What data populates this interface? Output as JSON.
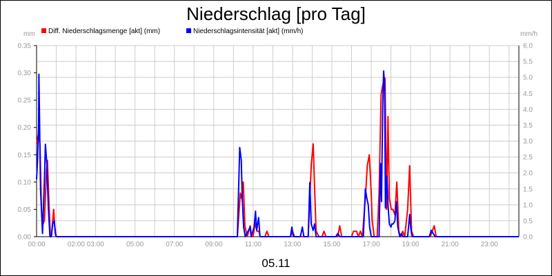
{
  "chart_data": {
    "type": "line",
    "title": "Niederschlag [pro Tag]",
    "date_label": "05.11",
    "y_left_unit": "mm",
    "y_right_unit": "mm/h",
    "ylim_left": [
      0,
      0.35
    ],
    "ylim_right": [
      0,
      6.0
    ],
    "xlim_hours": [
      0,
      24.5
    ],
    "grid": true,
    "legend_placement": "top-left",
    "y_left_ticks": [
      "0.00",
      "0.05",
      "0.10",
      "0.15",
      "0.20",
      "0.25",
      "0.30",
      "0.35"
    ],
    "y_right_ticks": [
      "0.0",
      "0.5",
      "1.0",
      "1.5",
      "2.0",
      "2.5",
      "3.0",
      "3.5",
      "4.0",
      "4.5",
      "5.0",
      "5.5",
      "6.0"
    ],
    "x_tick_labels": [
      {
        "hour": 0,
        "label": "00:00"
      },
      {
        "hour": 2.5,
        "label": "02:00 03:00"
      },
      {
        "hour": 5,
        "label": "05:00"
      },
      {
        "hour": 7,
        "label": "07:00"
      },
      {
        "hour": 9,
        "label": "09:00"
      },
      {
        "hour": 11,
        "label": "11:00"
      },
      {
        "hour": 13,
        "label": "13:00"
      },
      {
        "hour": 15,
        "label": "15:00"
      },
      {
        "hour": 17,
        "label": "17:00"
      },
      {
        "hour": 19,
        "label": "19:00"
      },
      {
        "hour": 21,
        "label": "21:00"
      },
      {
        "hour": 23,
        "label": "23:00"
      }
    ],
    "series": [
      {
        "name": "Diff. Niederschlagsmenge [akt] (mm)",
        "axis": "left",
        "color": "#ff0000",
        "points": [
          [
            0.0,
            0.17
          ],
          [
            0.05,
            0.18
          ],
          [
            0.1,
            0.19
          ],
          [
            0.17,
            0.17
          ],
          [
            0.25,
            0.05
          ],
          [
            0.3,
            0.02
          ],
          [
            0.4,
            0.03
          ],
          [
            0.5,
            0.12
          ],
          [
            0.55,
            0.14
          ],
          [
            0.62,
            0.07
          ],
          [
            0.7,
            0.0
          ],
          [
            0.75,
            0.0
          ],
          [
            0.82,
            0.03
          ],
          [
            0.87,
            0.05
          ],
          [
            0.92,
            0.02
          ],
          [
            1.0,
            0.0
          ],
          [
            10.2,
            0.0
          ],
          [
            10.35,
            0.08
          ],
          [
            10.42,
            0.07
          ],
          [
            10.5,
            0.1
          ],
          [
            10.58,
            0.02
          ],
          [
            10.7,
            0.0
          ],
          [
            10.85,
            0.02
          ],
          [
            10.92,
            0.0
          ],
          [
            11.0,
            0.0
          ],
          [
            11.1,
            0.025
          ],
          [
            11.2,
            0.01
          ],
          [
            11.3,
            0.01
          ],
          [
            11.35,
            0.0
          ],
          [
            11.6,
            0.0
          ],
          [
            11.7,
            0.01
          ],
          [
            11.8,
            0.0
          ],
          [
            12.9,
            0.0
          ],
          [
            13.0,
            0.01
          ],
          [
            13.1,
            0.0
          ],
          [
            13.8,
            0.0
          ],
          [
            13.95,
            0.13
          ],
          [
            14.05,
            0.17
          ],
          [
            14.12,
            0.09
          ],
          [
            14.2,
            0.01
          ],
          [
            14.35,
            0.0
          ],
          [
            14.5,
            0.0
          ],
          [
            14.6,
            0.01
          ],
          [
            14.7,
            0.0
          ],
          [
            15.3,
            0.0
          ],
          [
            15.4,
            0.02
          ],
          [
            15.5,
            0.0
          ],
          [
            16.0,
            0.0
          ],
          [
            16.1,
            0.01
          ],
          [
            16.25,
            0.01
          ],
          [
            16.35,
            0.0
          ],
          [
            16.45,
            0.01
          ],
          [
            16.55,
            0.0
          ],
          [
            16.7,
            0.07
          ],
          [
            16.8,
            0.13
          ],
          [
            16.9,
            0.15
          ],
          [
            17.0,
            0.08
          ],
          [
            17.05,
            0.03
          ],
          [
            17.15,
            0.0
          ],
          [
            17.3,
            0.0
          ],
          [
            17.4,
            0.08
          ],
          [
            17.5,
            0.26
          ],
          [
            17.6,
            0.28
          ],
          [
            17.7,
            0.29
          ],
          [
            17.78,
            0.05
          ],
          [
            17.85,
            0.22
          ],
          [
            17.92,
            0.07
          ],
          [
            18.02,
            0.05
          ],
          [
            18.1,
            0.05
          ],
          [
            18.2,
            0.04
          ],
          [
            18.3,
            0.1
          ],
          [
            18.4,
            0.01
          ],
          [
            18.5,
            0.0
          ],
          [
            18.6,
            0.01
          ],
          [
            18.7,
            0.0
          ],
          [
            18.85,
            0.05
          ],
          [
            18.95,
            0.13
          ],
          [
            19.05,
            0.01
          ],
          [
            19.15,
            0.0
          ],
          [
            20.0,
            0.0
          ],
          [
            20.1,
            0.01
          ],
          [
            20.2,
            0.02
          ],
          [
            20.3,
            0.0
          ],
          [
            24.5,
            0.0
          ]
        ]
      },
      {
        "name": "Niederschlagsintensität [akt] (mm/h)",
        "axis": "right",
        "color": "#0000ff",
        "points": [
          [
            0.0,
            1.8
          ],
          [
            0.05,
            2.4
          ],
          [
            0.1,
            3.5
          ],
          [
            0.12,
            5.1
          ],
          [
            0.2,
            1.5
          ],
          [
            0.3,
            0.1
          ],
          [
            0.4,
            1.8
          ],
          [
            0.45,
            2.9
          ],
          [
            0.52,
            2.3
          ],
          [
            0.6,
            0.9
          ],
          [
            0.68,
            0.0
          ],
          [
            0.75,
            0.0
          ],
          [
            0.82,
            0.4
          ],
          [
            0.9,
            0.5
          ],
          [
            0.95,
            0.1
          ],
          [
            1.0,
            0.0
          ],
          [
            10.2,
            0.0
          ],
          [
            10.32,
            2.8
          ],
          [
            10.4,
            2.4
          ],
          [
            10.45,
            1.2
          ],
          [
            10.52,
            0.3
          ],
          [
            10.6,
            0.0
          ],
          [
            10.85,
            0.3
          ],
          [
            10.9,
            0.0
          ],
          [
            11.05,
            0.3
          ],
          [
            11.12,
            0.8
          ],
          [
            11.18,
            0.2
          ],
          [
            11.28,
            0.6
          ],
          [
            11.35,
            0.0
          ],
          [
            12.9,
            0.0
          ],
          [
            12.97,
            0.3
          ],
          [
            13.05,
            0.0
          ],
          [
            13.4,
            0.0
          ],
          [
            13.5,
            0.3
          ],
          [
            13.58,
            0.0
          ],
          [
            13.8,
            0.0
          ],
          [
            13.88,
            1.7
          ],
          [
            13.95,
            0.4
          ],
          [
            14.05,
            0.2
          ],
          [
            14.12,
            0.4
          ],
          [
            14.2,
            0.0
          ],
          [
            15.2,
            0.0
          ],
          [
            15.3,
            0.1
          ],
          [
            15.4,
            0.0
          ],
          [
            16.6,
            0.0
          ],
          [
            16.7,
            1.5
          ],
          [
            16.78,
            1.2
          ],
          [
            16.85,
            1.0
          ],
          [
            16.92,
            0.3
          ],
          [
            17.0,
            0.0
          ],
          [
            17.4,
            0.0
          ],
          [
            17.47,
            2.3
          ],
          [
            17.52,
            1.1
          ],
          [
            17.58,
            4.0
          ],
          [
            17.63,
            5.2
          ],
          [
            17.68,
            4.8
          ],
          [
            17.72,
            0.9
          ],
          [
            17.8,
            1.9
          ],
          [
            17.85,
            1.0
          ],
          [
            17.92,
            0.4
          ],
          [
            18.0,
            0.3
          ],
          [
            18.05,
            0.4
          ],
          [
            18.12,
            0.4
          ],
          [
            18.2,
            0.5
          ],
          [
            18.28,
            1.1
          ],
          [
            18.35,
            0.3
          ],
          [
            18.45,
            0.0
          ],
          [
            18.55,
            0.1
          ],
          [
            18.6,
            0.0
          ],
          [
            18.85,
            0.0
          ],
          [
            18.95,
            0.7
          ],
          [
            19.0,
            0.3
          ],
          [
            19.08,
            0.0
          ],
          [
            19.95,
            0.0
          ],
          [
            20.05,
            0.2
          ],
          [
            20.15,
            0.1
          ],
          [
            20.25,
            0.0
          ],
          [
            24.5,
            0.0
          ]
        ]
      }
    ]
  }
}
